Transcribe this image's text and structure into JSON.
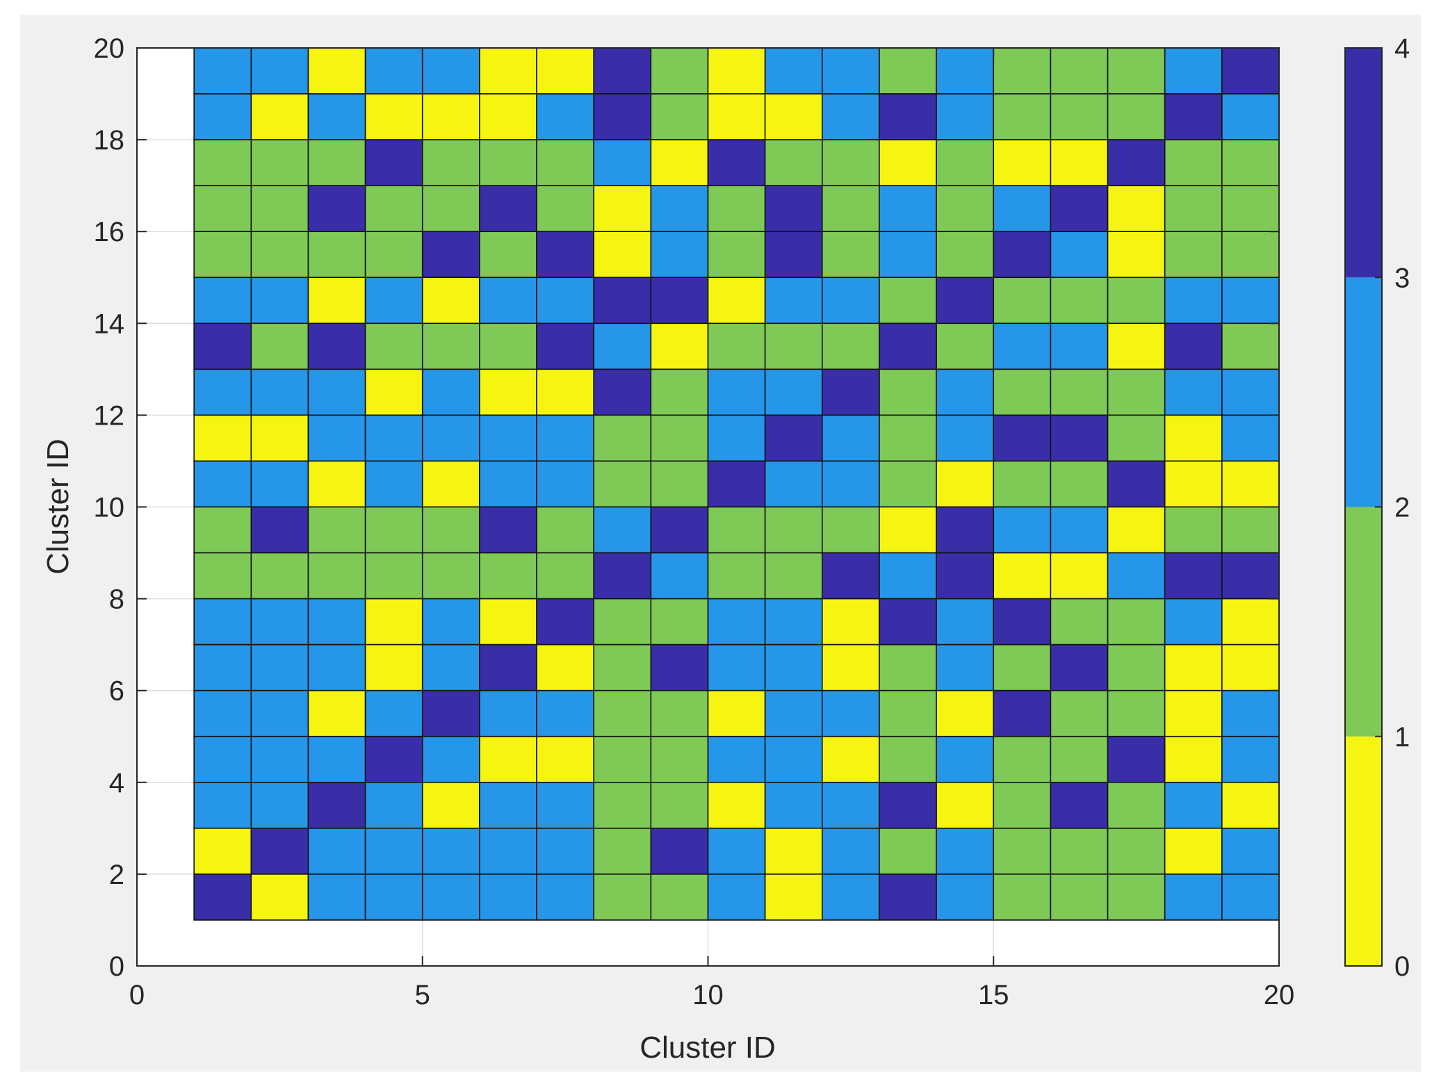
{
  "chart_data": {
    "type": "heatmap",
    "title": "",
    "xlabel": "Cluster ID",
    "ylabel": "Cluster ID",
    "xlim": [
      0,
      20
    ],
    "ylim": [
      0,
      20
    ],
    "xticks": [
      "0",
      "5",
      "10",
      "15",
      "20"
    ],
    "yticks": [
      "0",
      "2",
      "4",
      "6",
      "8",
      "10",
      "12",
      "14",
      "16",
      "18",
      "20"
    ],
    "x_range": [
      1,
      20
    ],
    "y_range": [
      1,
      20
    ],
    "rows_top_to_bottom": [
      [
        2,
        2,
        0,
        2,
        2,
        0,
        0,
        3,
        1,
        0,
        2,
        2,
        1,
        2,
        1,
        1,
        1,
        2,
        3
      ],
      [
        2,
        0,
        2,
        0,
        0,
        0,
        2,
        3,
        1,
        0,
        0,
        2,
        3,
        2,
        1,
        1,
        1,
        3,
        2
      ],
      [
        1,
        1,
        1,
        3,
        1,
        1,
        1,
        2,
        0,
        3,
        1,
        1,
        0,
        1,
        0,
        0,
        3,
        1,
        1
      ],
      [
        1,
        1,
        3,
        1,
        1,
        3,
        1,
        0,
        2,
        1,
        3,
        1,
        2,
        1,
        2,
        3,
        0,
        1,
        1
      ],
      [
        1,
        1,
        1,
        1,
        3,
        1,
        3,
        0,
        2,
        1,
        3,
        1,
        2,
        1,
        3,
        2,
        0,
        1,
        1
      ],
      [
        2,
        2,
        0,
        2,
        0,
        2,
        2,
        3,
        3,
        0,
        2,
        2,
        1,
        3,
        1,
        1,
        1,
        2,
        2
      ],
      [
        3,
        1,
        3,
        1,
        1,
        1,
        3,
        2,
        0,
        1,
        1,
        1,
        3,
        1,
        2,
        2,
        0,
        3,
        1
      ],
      [
        2,
        2,
        2,
        0,
        2,
        0,
        0,
        3,
        1,
        2,
        2,
        3,
        1,
        2,
        1,
        1,
        1,
        2,
        2
      ],
      [
        0,
        0,
        2,
        2,
        2,
        2,
        2,
        1,
        1,
        2,
        3,
        2,
        1,
        2,
        3,
        3,
        1,
        0,
        2
      ],
      [
        2,
        2,
        0,
        2,
        0,
        2,
        2,
        1,
        1,
        3,
        2,
        2,
        1,
        0,
        1,
        1,
        3,
        0,
        0
      ],
      [
        1,
        3,
        1,
        1,
        1,
        3,
        1,
        2,
        3,
        1,
        1,
        1,
        0,
        3,
        2,
        2,
        0,
        1,
        1
      ],
      [
        1,
        1,
        1,
        1,
        1,
        1,
        1,
        3,
        2,
        1,
        1,
        3,
        2,
        3,
        0,
        0,
        2,
        3,
        3
      ],
      [
        2,
        2,
        2,
        0,
        2,
        0,
        3,
        1,
        1,
        2,
        2,
        0,
        3,
        2,
        3,
        1,
        1,
        2,
        0
      ],
      [
        2,
        2,
        2,
        0,
        2,
        3,
        0,
        1,
        3,
        2,
        2,
        0,
        1,
        2,
        1,
        3,
        1,
        0,
        0
      ],
      [
        2,
        2,
        0,
        2,
        3,
        2,
        2,
        1,
        1,
        0,
        2,
        2,
        1,
        0,
        3,
        1,
        1,
        0,
        2
      ],
      [
        2,
        2,
        2,
        3,
        2,
        0,
        0,
        1,
        1,
        2,
        2,
        0,
        1,
        2,
        1,
        1,
        3,
        0,
        2
      ],
      [
        2,
        2,
        3,
        2,
        0,
        2,
        2,
        1,
        1,
        0,
        2,
        2,
        3,
        0,
        1,
        3,
        1,
        2,
        0
      ],
      [
        0,
        3,
        2,
        2,
        2,
        2,
        2,
        1,
        3,
        2,
        0,
        2,
        1,
        2,
        1,
        1,
        1,
        0,
        2
      ],
      [
        3,
        0,
        2,
        2,
        2,
        2,
        2,
        1,
        1,
        2,
        0,
        2,
        3,
        2,
        1,
        1,
        1,
        2,
        2
      ]
    ],
    "colorbar": {
      "ticks": [
        "0",
        "1",
        "2",
        "3",
        "4"
      ],
      "colors": [
        "#F5F511",
        "#7FC956",
        "#2696E8",
        "#3A2EA8"
      ]
    }
  }
}
